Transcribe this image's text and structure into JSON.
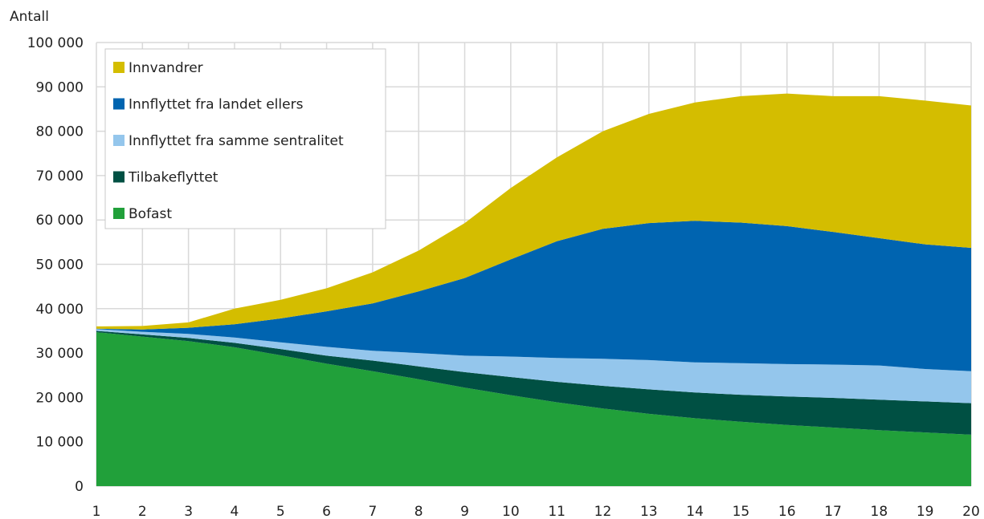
{
  "chart_data": {
    "type": "area",
    "stacked": true,
    "ylabel": "Antall",
    "xlabel": "",
    "ylim": [
      0,
      100000
    ],
    "yticks": [
      0,
      10000,
      20000,
      30000,
      40000,
      50000,
      60000,
      70000,
      80000,
      90000,
      100000
    ],
    "ytick_labels": [
      "0",
      "10 000",
      "20 000",
      "30 000",
      "40 000",
      "50 000",
      "60 000",
      "70 000",
      "80 000",
      "90 000",
      "100 000"
    ],
    "x": [
      1,
      2,
      3,
      4,
      5,
      6,
      7,
      8,
      9,
      10,
      11,
      12,
      13,
      14,
      15,
      16,
      17,
      18,
      19,
      20
    ],
    "grid": true,
    "legend_position": "top-left",
    "series": [
      {
        "name": "Bofast",
        "color": "#21a03a",
        "values": [
          34700,
          33700,
          32700,
          31300,
          29500,
          27600,
          25900,
          24100,
          22200,
          20500,
          18900,
          17500,
          16300,
          15300,
          14500,
          13800,
          13200,
          12600,
          12100,
          11600
        ]
      },
      {
        "name": "Tilbakeflyttet",
        "color": "#005043",
        "values": [
          300,
          500,
          700,
          1000,
          1400,
          1800,
          2400,
          2900,
          3500,
          4100,
          4600,
          5100,
          5500,
          5800,
          6100,
          6400,
          6700,
          6900,
          7000,
          7100
        ]
      },
      {
        "name": "Innflyttet fra samme sentralitet",
        "color": "#94c6ec",
        "values": [
          400,
          600,
          900,
          1200,
          1500,
          2000,
          2200,
          3000,
          3700,
          4600,
          5400,
          6100,
          6600,
          6800,
          7100,
          7300,
          7500,
          7700,
          7300,
          7200
        ]
      },
      {
        "name": "Innflyttet fra landet ellers",
        "color": "#0064b0",
        "values": [
          100,
          500,
          1400,
          3000,
          5400,
          8000,
          10700,
          13900,
          17500,
          21900,
          26300,
          29300,
          30900,
          31900,
          31700,
          31100,
          29900,
          28700,
          28100,
          27800
        ]
      },
      {
        "name": "Innvandrer",
        "color": "#d4bd00",
        "values": [
          500,
          800,
          1200,
          3500,
          4200,
          5200,
          7000,
          9200,
          12400,
          16100,
          18900,
          22000,
          24600,
          26700,
          28500,
          29900,
          30600,
          32000,
          32400,
          32100
        ]
      }
    ],
    "legend_order": [
      "Innvandrer",
      "Innflyttet fra landet ellers",
      "Innflyttet fra samme sentralitet",
      "Tilbakeflyttet",
      "Bofast"
    ]
  }
}
